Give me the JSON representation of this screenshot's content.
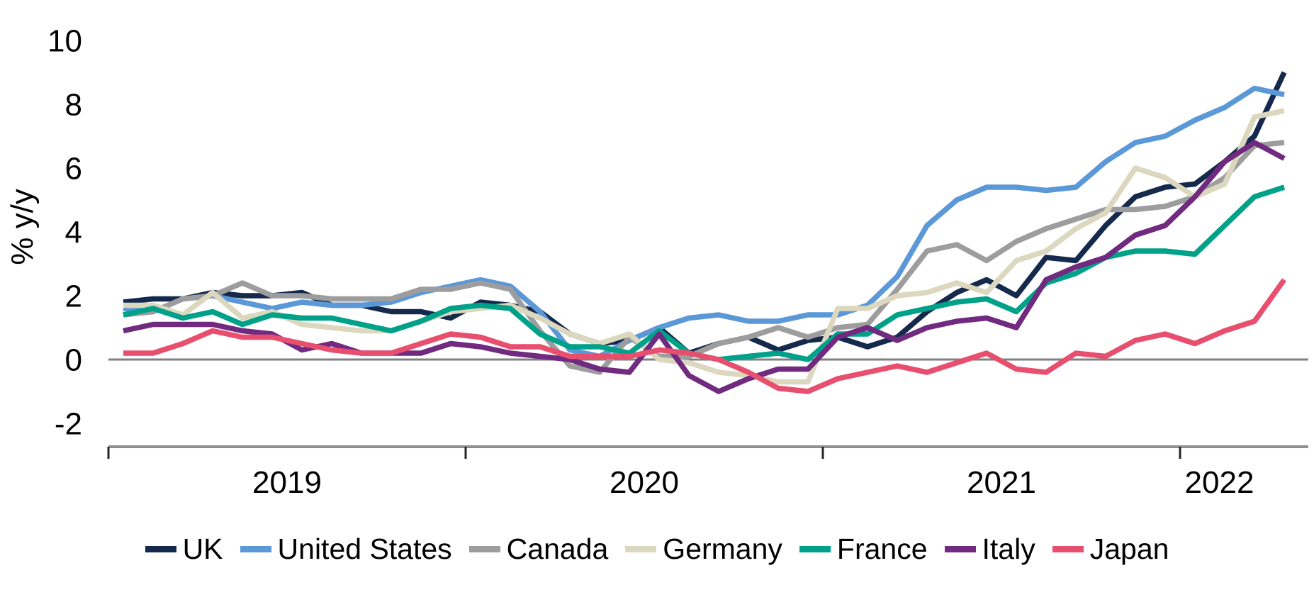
{
  "chart_data": {
    "type": "line",
    "title": "",
    "xlabel": "",
    "ylabel": "% y/y",
    "x_unit": "month",
    "x_start": "Jan 2019",
    "x_end": "Apr 2022",
    "x_tick_years": [
      "2019",
      "2020",
      "2021",
      "2022"
    ],
    "y_ticks": [
      10,
      8,
      6,
      4,
      2,
      0,
      -2
    ],
    "ylim": [
      -2.8,
      10.3
    ],
    "grid": "zero-line-only",
    "legend_position": "bottom",
    "axis_color": "#8f8f8f",
    "zero_line_color": "#808080",
    "tick_mark_color": "#262626",
    "months": [
      "Jan 2019",
      "Feb 2019",
      "Mar 2019",
      "Apr 2019",
      "May 2019",
      "Jun 2019",
      "Jul 2019",
      "Aug 2019",
      "Sep 2019",
      "Oct 2019",
      "Nov 2019",
      "Dec 2019",
      "Jan 2020",
      "Feb 2020",
      "Mar 2020",
      "Apr 2020",
      "May 2020",
      "Jun 2020",
      "Jul 2020",
      "Aug 2020",
      "Sep 2020",
      "Oct 2020",
      "Nov 2020",
      "Dec 2020",
      "Jan 2021",
      "Feb 2021",
      "Mar 2021",
      "Apr 2021",
      "May 2021",
      "Jun 2021",
      "Jul 2021",
      "Aug 2021",
      "Sep 2021",
      "Oct 2021",
      "Nov 2021",
      "Dec 2021",
      "Jan 2022",
      "Feb 2022",
      "Mar 2022",
      "Apr 2022"
    ],
    "series": [
      {
        "name": "UK",
        "color": "#15294d",
        "values": [
          1.8,
          1.9,
          1.9,
          2.1,
          2.0,
          2.0,
          2.1,
          1.7,
          1.7,
          1.5,
          1.5,
          1.3,
          1.8,
          1.7,
          1.5,
          0.8,
          0.5,
          0.6,
          1.0,
          0.2,
          0.5,
          0.7,
          0.3,
          0.6,
          0.7,
          0.4,
          0.7,
          1.5,
          2.1,
          2.5,
          2.0,
          3.2,
          3.1,
          4.2,
          5.1,
          5.4,
          5.5,
          6.2,
          7.0,
          9.0
        ]
      },
      {
        "name": "United States",
        "color": "#5b98d8",
        "values": [
          1.6,
          1.5,
          1.9,
          2.0,
          1.8,
          1.6,
          1.8,
          1.7,
          1.7,
          1.8,
          2.1,
          2.3,
          2.5,
          2.3,
          1.5,
          0.3,
          0.1,
          0.6,
          1.0,
          1.3,
          1.4,
          1.2,
          1.2,
          1.4,
          1.4,
          1.7,
          2.6,
          4.2,
          5.0,
          5.4,
          5.4,
          5.3,
          5.4,
          6.2,
          6.8,
          7.0,
          7.5,
          7.9,
          8.5,
          8.3
        ]
      },
      {
        "name": "Canada",
        "color": "#9d9d9d",
        "values": [
          1.4,
          1.5,
          1.9,
          2.0,
          2.4,
          2.0,
          2.0,
          1.9,
          1.9,
          1.9,
          2.2,
          2.2,
          2.4,
          2.2,
          0.9,
          -0.2,
          -0.4,
          0.7,
          0.1,
          0.1,
          0.5,
          0.7,
          1.0,
          0.7,
          1.0,
          1.1,
          2.2,
          3.4,
          3.6,
          3.1,
          3.7,
          4.1,
          4.4,
          4.7,
          4.7,
          4.8,
          5.1,
          5.7,
          6.7,
          6.8
        ]
      },
      {
        "name": "Germany",
        "color": "#dcd7bf",
        "values": [
          1.7,
          1.7,
          1.4,
          2.1,
          1.3,
          1.5,
          1.1,
          1.0,
          0.9,
          0.9,
          1.2,
          1.5,
          1.6,
          1.7,
          1.3,
          0.8,
          0.5,
          0.8,
          0.0,
          -0.1,
          -0.4,
          -0.5,
          -0.7,
          -0.7,
          1.6,
          1.6,
          2.0,
          2.1,
          2.4,
          2.1,
          3.1,
          3.4,
          4.1,
          4.6,
          6.0,
          5.7,
          5.1,
          5.5,
          7.6,
          7.8
        ]
      },
      {
        "name": "France",
        "color": "#00a189",
        "values": [
          1.4,
          1.6,
          1.3,
          1.5,
          1.1,
          1.4,
          1.3,
          1.3,
          1.1,
          0.9,
          1.2,
          1.6,
          1.7,
          1.6,
          0.8,
          0.4,
          0.4,
          0.2,
          0.9,
          0.2,
          0.0,
          0.1,
          0.2,
          0.0,
          0.8,
          0.8,
          1.4,
          1.6,
          1.8,
          1.9,
          1.5,
          2.4,
          2.7,
          3.2,
          3.4,
          3.4,
          3.3,
          4.2,
          5.1,
          5.4
        ]
      },
      {
        "name": "Italy",
        "color": "#702a80",
        "values": [
          0.9,
          1.1,
          1.1,
          1.1,
          0.9,
          0.8,
          0.3,
          0.5,
          0.2,
          0.2,
          0.2,
          0.5,
          0.4,
          0.2,
          0.1,
          0.0,
          -0.3,
          -0.4,
          0.8,
          -0.5,
          -1.0,
          -0.6,
          -0.3,
          -0.3,
          0.7,
          1.0,
          0.6,
          1.0,
          1.2,
          1.3,
          1.0,
          2.5,
          2.9,
          3.2,
          3.9,
          4.2,
          5.1,
          6.2,
          6.8,
          6.3
        ]
      },
      {
        "name": "Japan",
        "color": "#e84f6e",
        "values": [
          0.2,
          0.2,
          0.5,
          0.9,
          0.7,
          0.7,
          0.5,
          0.3,
          0.2,
          0.2,
          0.5,
          0.8,
          0.7,
          0.4,
          0.4,
          0.1,
          0.1,
          0.1,
          0.3,
          0.2,
          0.0,
          -0.4,
          -0.9,
          -1.0,
          -0.6,
          -0.4,
          -0.2,
          -0.4,
          -0.1,
          0.2,
          -0.3,
          -0.4,
          0.2,
          0.1,
          0.6,
          0.8,
          0.5,
          0.9,
          1.2,
          2.5
        ]
      }
    ]
  }
}
